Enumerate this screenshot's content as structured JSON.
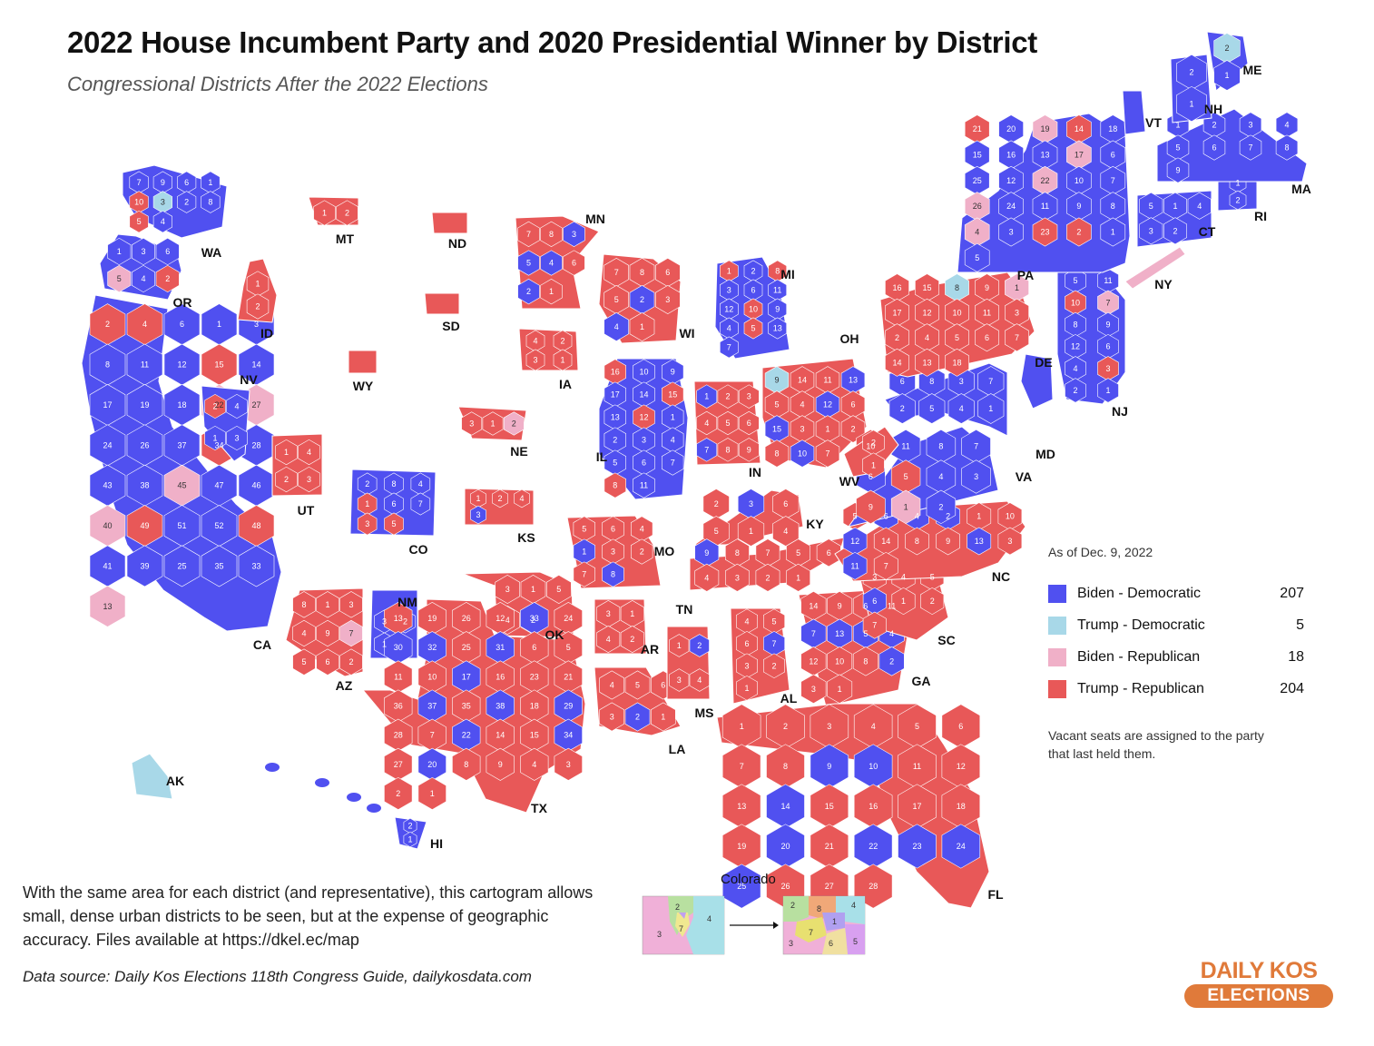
{
  "title": "2022 House Incumbent Party and 2020 Presidential Winner by District",
  "subtitle": "Congressional Districts After the 2022 Elections",
  "colors": {
    "biden_democratic": "#5050f0",
    "trump_democratic": "#a8d8e8",
    "biden_republican": "#f0b0c8",
    "trump_republican": "#e85858"
  },
  "legend": {
    "as_of": "As of Dec. 9, 2022",
    "items": [
      {
        "label": "Biden - Democratic",
        "count": "207",
        "color_key": "biden_democratic"
      },
      {
        "label": "Trump - Democratic",
        "count": "5",
        "color_key": "trump_democratic"
      },
      {
        "label": "Biden - Republican",
        "count": "18",
        "color_key": "biden_republican"
      },
      {
        "label": "Trump - Republican",
        "count": "204",
        "color_key": "trump_republican"
      }
    ],
    "note": "Vacant seats are assigned to the party that last held them."
  },
  "states": [
    {
      "abbr": "WA",
      "party": "D",
      "nums": [
        "7",
        "9",
        "6",
        "1",
        "10",
        "3",
        "2",
        "8",
        "5",
        "4"
      ]
    },
    {
      "abbr": "OR",
      "party": "D",
      "nums": [
        "1",
        "3",
        "6",
        "5",
        "4",
        "2"
      ]
    },
    {
      "abbr": "CA",
      "party": "D",
      "nums": [
        "2",
        "4",
        "6",
        "1",
        "3",
        "8",
        "11",
        "12",
        "15",
        "14",
        "17",
        "19",
        "18",
        "22",
        "27",
        "24",
        "26",
        "37",
        "34",
        "28",
        "43",
        "38",
        "45",
        "47",
        "46",
        "40",
        "49",
        "51",
        "52",
        "48",
        "41",
        "39",
        "25",
        "35",
        "33",
        "13"
      ]
    },
    {
      "abbr": "NV",
      "party": "D",
      "nums": [
        "2",
        "4",
        "1",
        "3"
      ]
    },
    {
      "abbr": "ID",
      "party": "R",
      "nums": [
        "1",
        "2"
      ]
    },
    {
      "abbr": "MT",
      "party": "R",
      "nums": [
        "1",
        "2"
      ]
    },
    {
      "abbr": "ND",
      "party": "R",
      "nums": []
    },
    {
      "abbr": "SD",
      "party": "R",
      "nums": []
    },
    {
      "abbr": "WY",
      "party": "R",
      "nums": []
    },
    {
      "abbr": "UT",
      "party": "R",
      "nums": [
        "1",
        "4",
        "2",
        "3"
      ]
    },
    {
      "abbr": "CO",
      "party": "D",
      "nums": [
        "2",
        "8",
        "4",
        "1",
        "6",
        "7",
        "3",
        "5"
      ]
    },
    {
      "abbr": "AZ",
      "party": "R",
      "nums": [
        "8",
        "1",
        "3",
        "4",
        "9",
        "7",
        "5",
        "6",
        "2"
      ]
    },
    {
      "abbr": "NM",
      "party": "D",
      "nums": [
        "3",
        "2",
        "1"
      ]
    },
    {
      "abbr": "NE",
      "party": "R",
      "nums": [
        "3",
        "1",
        "2"
      ]
    },
    {
      "abbr": "KS",
      "party": "R",
      "nums": [
        "1",
        "2",
        "4",
        "3"
      ]
    },
    {
      "abbr": "OK",
      "party": "R",
      "nums": [
        "3",
        "1",
        "5",
        "4",
        "2"
      ]
    },
    {
      "abbr": "TX",
      "party": "R",
      "nums": [
        "13",
        "19",
        "26",
        "12",
        "33",
        "24",
        "30",
        "32",
        "25",
        "31",
        "6",
        "5",
        "11",
        "10",
        "17",
        "16",
        "23",
        "21",
        "36",
        "37",
        "35",
        "38",
        "18",
        "29",
        "28",
        "7",
        "22",
        "14",
        "15",
        "34",
        "27",
        "20",
        "8",
        "9",
        "4",
        "3",
        "2",
        "1"
      ]
    },
    {
      "abbr": "MN",
      "party": "R",
      "nums": [
        "7",
        "8",
        "3",
        "5",
        "4",
        "6",
        "2",
        "1"
      ]
    },
    {
      "abbr": "IA",
      "party": "R",
      "nums": [
        "4",
        "2",
        "3",
        "1"
      ]
    },
    {
      "abbr": "MO",
      "party": "R",
      "nums": [
        "5",
        "6",
        "4",
        "1",
        "3",
        "2",
        "7",
        "8"
      ]
    },
    {
      "abbr": "AR",
      "party": "R",
      "nums": [
        "3",
        "1",
        "4",
        "2"
      ]
    },
    {
      "abbr": "LA",
      "party": "R",
      "nums": [
        "4",
        "5",
        "6",
        "3",
        "2",
        "1"
      ]
    },
    {
      "abbr": "WI",
      "party": "R",
      "nums": [
        "7",
        "8",
        "6",
        "5",
        "2",
        "3",
        "4",
        "1"
      ]
    },
    {
      "abbr": "IL",
      "party": "D",
      "nums": [
        "16",
        "10",
        "9",
        "17",
        "14",
        "15",
        "13",
        "12",
        "1",
        "2",
        "3",
        "4",
        "5",
        "6",
        "7",
        "8",
        "11"
      ]
    },
    {
      "abbr": "MI",
      "party": "D",
      "nums": [
        "1",
        "2",
        "8",
        "3",
        "6",
        "11",
        "12",
        "10",
        "9",
        "4",
        "5",
        "13",
        "7"
      ]
    },
    {
      "abbr": "IN",
      "party": "R",
      "nums": [
        "1",
        "2",
        "3",
        "4",
        "5",
        "6",
        "7",
        "8",
        "9"
      ]
    },
    {
      "abbr": "OH",
      "party": "R",
      "nums": [
        "9",
        "14",
        "11",
        "13",
        "5",
        "4",
        "12",
        "6",
        "15",
        "3",
        "1",
        "2",
        "8",
        "10",
        "7"
      ]
    },
    {
      "abbr": "KY",
      "party": "R",
      "nums": [
        "2",
        "3",
        "6",
        "5",
        "1",
        "4"
      ]
    },
    {
      "abbr": "TN",
      "party": "R",
      "nums": [
        "9",
        "8",
        "7",
        "5",
        "6",
        "4",
        "3",
        "2",
        "1"
      ]
    },
    {
      "abbr": "MS",
      "party": "R",
      "nums": [
        "1",
        "2",
        "3",
        "4"
      ]
    },
    {
      "abbr": "AL",
      "party": "R",
      "nums": [
        "4",
        "5",
        "6",
        "7",
        "3",
        "2",
        "1"
      ]
    },
    {
      "abbr": "GA",
      "party": "R",
      "nums": [
        "14",
        "9",
        "6",
        "11",
        "7",
        "13",
        "5",
        "4",
        "12",
        "10",
        "8",
        "2",
        "3",
        "1"
      ]
    },
    {
      "abbr": "FL",
      "party": "R",
      "nums": [
        "1",
        "2",
        "3",
        "4",
        "5",
        "6",
        "7",
        "8",
        "9",
        "10",
        "11",
        "12",
        "13",
        "14",
        "15",
        "16",
        "17",
        "18",
        "19",
        "20",
        "21",
        "22",
        "23",
        "24",
        "25",
        "26",
        "27",
        "28"
      ]
    },
    {
      "abbr": "SC",
      "party": "R",
      "nums": [
        "3",
        "4",
        "5",
        "6",
        "1",
        "2",
        "7"
      ]
    },
    {
      "abbr": "NC",
      "party": "R",
      "nums": [
        "5",
        "6",
        "4",
        "2",
        "1",
        "10",
        "12",
        "14",
        "8",
        "9",
        "13",
        "3",
        "11",
        "7"
      ]
    },
    {
      "abbr": "VA",
      "party": "D",
      "nums": [
        "10",
        "11",
        "8",
        "7",
        "6",
        "5",
        "4",
        "3",
        "9",
        "1",
        "2"
      ]
    },
    {
      "abbr": "WV",
      "party": "R",
      "nums": [
        "2",
        "1"
      ]
    },
    {
      "abbr": "MD",
      "party": "D",
      "nums": [
        "6",
        "8",
        "3",
        "7",
        "2",
        "5",
        "4",
        "1"
      ]
    },
    {
      "abbr": "DE",
      "party": "D",
      "nums": []
    },
    {
      "abbr": "PA",
      "party": "R",
      "nums": [
        "16",
        "15",
        "8",
        "9",
        "1",
        "17",
        "12",
        "10",
        "11",
        "3",
        "2",
        "4",
        "5",
        "6",
        "7",
        "14",
        "13",
        "18"
      ]
    },
    {
      "abbr": "NJ",
      "party": "D",
      "nums": [
        "5",
        "11",
        "10",
        "7",
        "8",
        "9",
        "12",
        "6",
        "4",
        "3",
        "2",
        "1"
      ]
    },
    {
      "abbr": "NY",
      "party": "D",
      "nums": [
        "21",
        "20",
        "19",
        "14",
        "18",
        "15",
        "16",
        "13",
        "17",
        "6",
        "25",
        "12",
        "22",
        "10",
        "7",
        "26",
        "24",
        "11",
        "9",
        "8",
        "4",
        "3",
        "23",
        "2",
        "1",
        "5"
      ]
    },
    {
      "abbr": "CT",
      "party": "D",
      "nums": [
        "5",
        "1",
        "4",
        "3",
        "2"
      ]
    },
    {
      "abbr": "RI",
      "party": "D",
      "nums": [
        "1",
        "2"
      ]
    },
    {
      "abbr": "MA",
      "party": "D",
      "nums": [
        "1",
        "2",
        "3",
        "4",
        "5",
        "6",
        "7",
        "8",
        "9"
      ]
    },
    {
      "abbr": "VT",
      "party": "D",
      "nums": []
    },
    {
      "abbr": "NH",
      "party": "D",
      "nums": [
        "2",
        "1"
      ]
    },
    {
      "abbr": "ME",
      "party": "D",
      "nums": [
        "2",
        "1"
      ]
    },
    {
      "abbr": "AK",
      "party": "TD",
      "nums": []
    },
    {
      "abbr": "HI",
      "party": "D",
      "nums": [
        "2",
        "1"
      ]
    }
  ],
  "colorado_inset": {
    "title": "Colorado",
    "before_nums": [
      "2",
      "4",
      "3",
      "7"
    ],
    "after_nums": [
      "2",
      "8",
      "4",
      "7",
      "3",
      "6",
      "5",
      "1"
    ]
  },
  "description": "With the same area for each district (and representative), this cartogram allows small, dense urban districts to be seen, but at the expense of geographic accuracy. Files available at https://dkel.ec/map",
  "source": "Data source: Daily Kos Elections 118th Congress Guide, dailykosdata.com",
  "logo": {
    "line1": "DAILY KOS",
    "line2": "ELECTIONS"
  }
}
